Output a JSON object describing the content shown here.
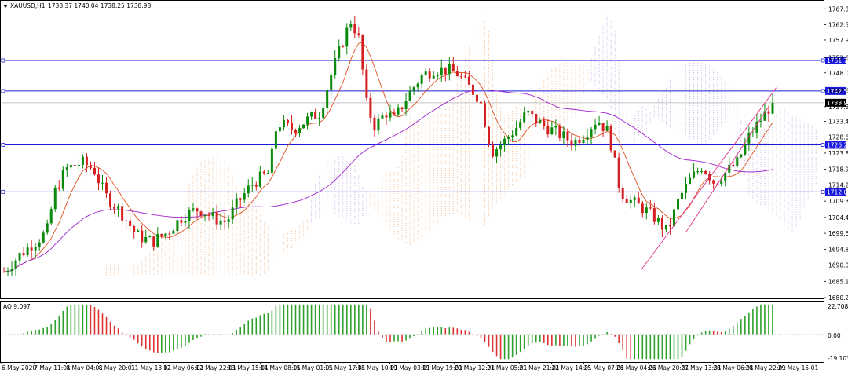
{
  "header": {
    "symbol": "XAUUSD,H1",
    "ohlc": "1738.37 1740.04 1738.25 1738.98"
  },
  "indicator": {
    "label": "AO 9.097",
    "scale_top": "22.708",
    "scale_zero": "0.00",
    "scale_bottom": "-19.103"
  },
  "colors": {
    "bull": "#0a8a0a",
    "bear": "#d42020",
    "level_line": "#1a1adc",
    "ma_fast": "#e0501e",
    "ma_slow": "#a020d0",
    "cloud": "#f0a060",
    "cloud_b": "#b090d8",
    "trend": "#e0308a",
    "ao_up": "#2ea02e",
    "ao_down": "#dc3232"
  },
  "chart_data": {
    "type": "candlestick",
    "symbol": "XAUUSD",
    "timeframe": "H1",
    "ylim": [
      1680.2,
      1769.5
    ],
    "y_ticks": [
      "1767.30",
      "1762.50",
      "1757.90",
      "1752.60",
      "1748.00",
      "1742.60",
      "1737.80",
      "1733.40",
      "1728.60",
      "1723.80",
      "1718.90",
      "1714.20",
      "1709.30",
      "1704.40",
      "1699.60",
      "1694.80",
      "1690.00",
      "1685.10",
      "1680.20"
    ],
    "x_ticks": [
      "6 May 2020",
      "7 May 11:01",
      "8 May 04:01",
      "8 May 20:01",
      "11 May 13:01",
      "12 May 06:01",
      "12 May 22:01",
      "13 May 15:01",
      "14 May 08:01",
      "15 May 01:01",
      "15 May 17:01",
      "18 May 10:01",
      "19 May 03:01",
      "19 May 19:01",
      "20 May 12:01",
      "21 May 05:01",
      "21 May 21:01",
      "22 May 14:01",
      "25 May 07:01",
      "26 May 04:01",
      "26 May 20:01",
      "27 May 13:01",
      "28 May 06:01",
      "28 May 22:01",
      "29 May 15:01"
    ],
    "current_price": "1738.98",
    "horizontal_levels": [
      "1751.74",
      "1742.52",
      "1726.28",
      "1712.09"
    ],
    "price_path": [
      [
        0,
        1688
      ],
      [
        0.02,
        1693
      ],
      [
        0.04,
        1697
      ],
      [
        0.055,
        1700
      ],
      [
        0.065,
        1712
      ],
      [
        0.08,
        1719
      ],
      [
        0.1,
        1721
      ],
      [
        0.115,
        1719
      ],
      [
        0.13,
        1711
      ],
      [
        0.15,
        1706
      ],
      [
        0.17,
        1699
      ],
      [
        0.19,
        1697
      ],
      [
        0.21,
        1700
      ],
      [
        0.23,
        1705
      ],
      [
        0.25,
        1707
      ],
      [
        0.27,
        1704
      ],
      [
        0.285,
        1703
      ],
      [
        0.3,
        1709
      ],
      [
        0.32,
        1715
      ],
      [
        0.34,
        1718
      ],
      [
        0.35,
        1733
      ],
      [
        0.37,
        1731
      ],
      [
        0.39,
        1734
      ],
      [
        0.405,
        1736
      ],
      [
        0.42,
        1748
      ],
      [
        0.435,
        1758
      ],
      [
        0.445,
        1764
      ],
      [
        0.455,
        1758
      ],
      [
        0.465,
        1738
      ],
      [
        0.475,
        1732
      ],
      [
        0.49,
        1736
      ],
      [
        0.5,
        1734
      ],
      [
        0.52,
        1742
      ],
      [
        0.535,
        1747
      ],
      [
        0.55,
        1749
      ],
      [
        0.565,
        1749
      ],
      [
        0.58,
        1748
      ],
      [
        0.595,
        1744
      ],
      [
        0.61,
        1740
      ],
      [
        0.625,
        1724
      ],
      [
        0.64,
        1727
      ],
      [
        0.655,
        1731
      ],
      [
        0.67,
        1736
      ],
      [
        0.685,
        1733
      ],
      [
        0.7,
        1731
      ],
      [
        0.715,
        1729
      ],
      [
        0.73,
        1727
      ],
      [
        0.745,
        1730
      ],
      [
        0.76,
        1734
      ],
      [
        0.775,
        1730
      ],
      [
        0.79,
        1712
      ],
      [
        0.805,
        1709
      ],
      [
        0.82,
        1707
      ],
      [
        0.835,
        1704
      ],
      [
        0.85,
        1700
      ],
      [
        0.865,
        1710
      ],
      [
        0.88,
        1716
      ],
      [
        0.895,
        1720
      ],
      [
        0.91,
        1715
      ],
      [
        0.925,
        1718
      ],
      [
        0.94,
        1721
      ],
      [
        0.955,
        1729
      ],
      [
        0.97,
        1734
      ],
      [
        0.985,
        1739
      ]
    ],
    "indicator": {
      "name": "AO",
      "value": "9.097",
      "ylim": [
        -19.103,
        22.708
      ]
    }
  }
}
